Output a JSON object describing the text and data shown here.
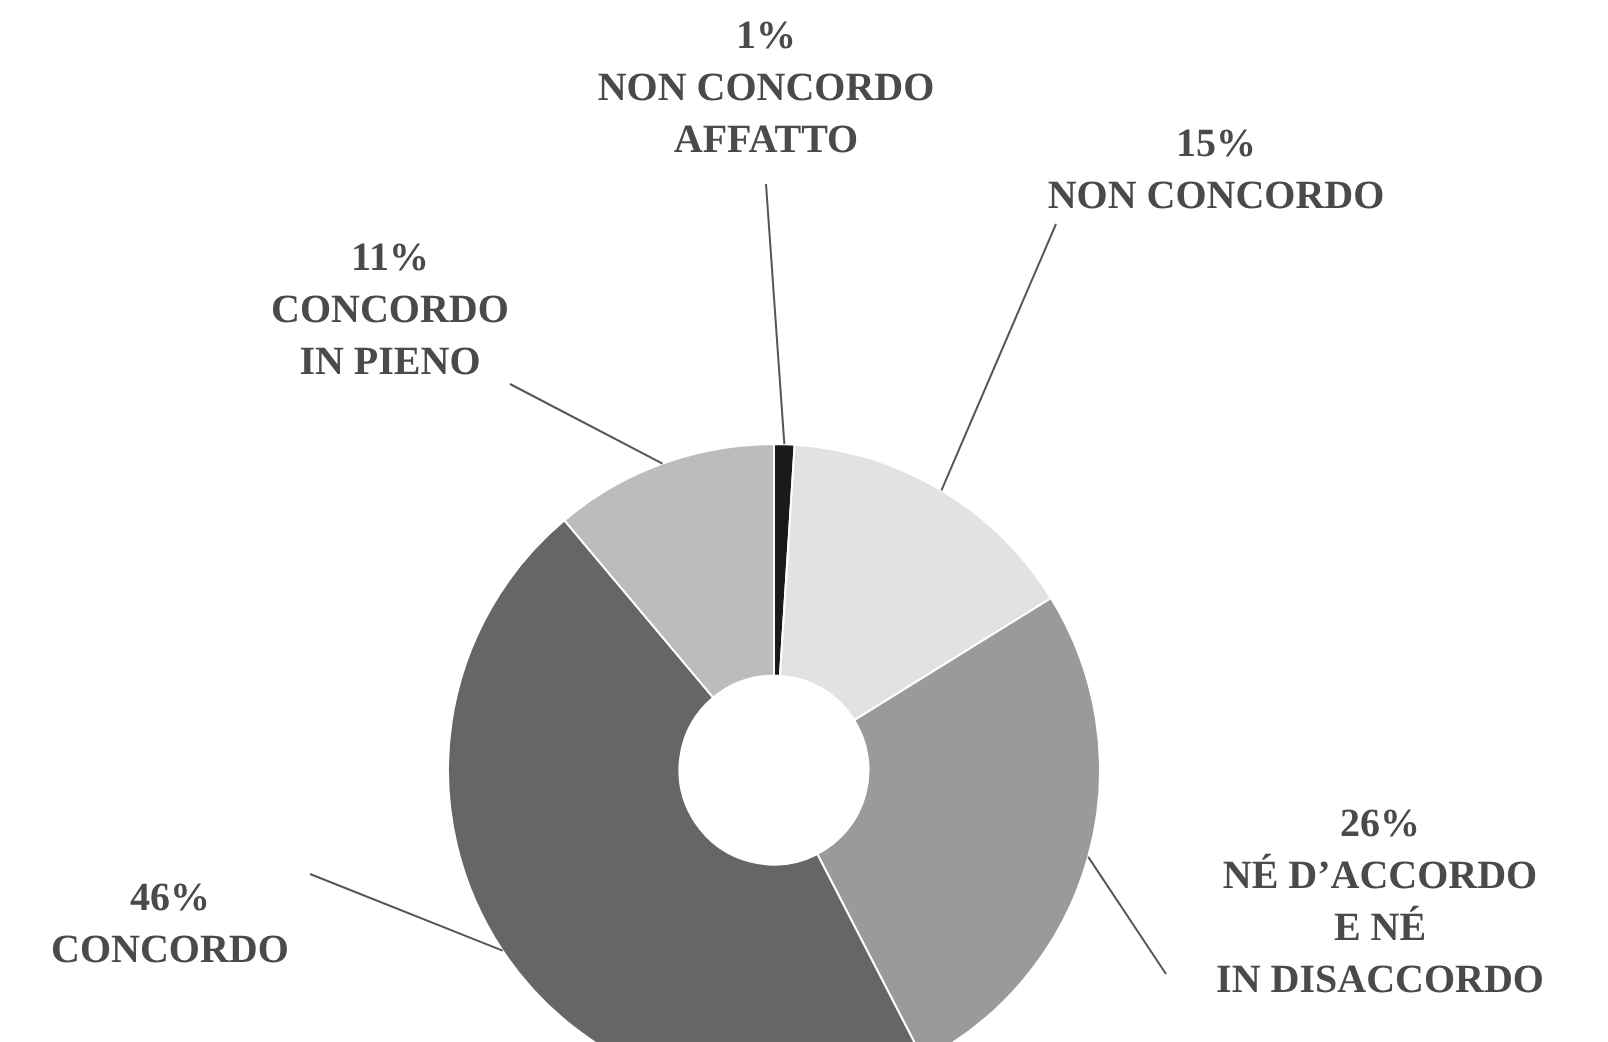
{
  "chart_data": {
    "type": "donut",
    "categories": [
      "NON CONCORDO\nAFFATTO",
      "NON CONCORDO",
      "NÉ D’ACCORDO\nE NÉ\nIN DISACCORDO",
      "CONCORDO",
      "CONCORDO\nIN PIENO"
    ],
    "values": [
      1,
      15,
      26,
      46,
      11
    ],
    "value_labels": [
      "1%",
      "15%",
      "26%",
      "46%",
      "11%"
    ],
    "colors": [
      "#1a1a1a",
      "#e2e2e2",
      "#9a9a9a",
      "#666666",
      "#bcbcbc"
    ],
    "legend": false
  }
}
